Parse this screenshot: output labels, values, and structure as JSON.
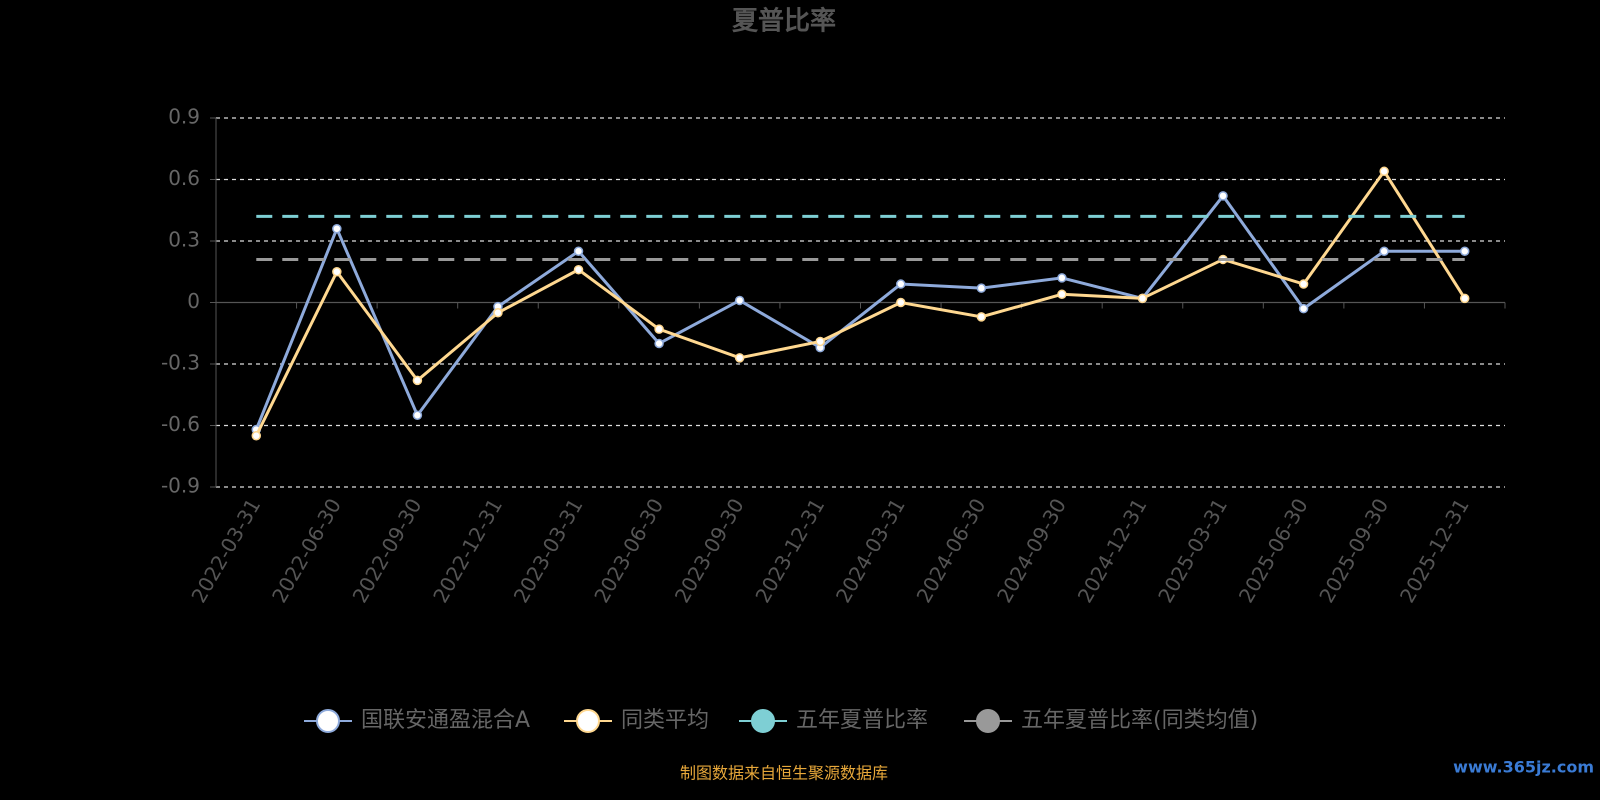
{
  "chart_data": {
    "type": "line",
    "title": "夏普比率",
    "categories": [
      "2022-03-31",
      "2022-06-30",
      "2022-09-30",
      "2022-12-31",
      "2023-03-31",
      "2023-06-30",
      "2023-09-30",
      "2023-12-31",
      "2024-03-31",
      "2024-06-30",
      "2024-09-30",
      "2024-12-31",
      "2025-03-31",
      "2025-06-30",
      "2025-09-30",
      "2025-12-31"
    ],
    "series": [
      {
        "name": "国联安通盈混合A",
        "color": "#8eaadb",
        "values": [
          -0.62,
          0.36,
          -0.55,
          -0.02,
          0.25,
          -0.2,
          0.01,
          -0.22,
          0.09,
          0.07,
          0.12,
          0.02,
          0.52,
          -0.03,
          0.25,
          0.25
        ]
      },
      {
        "name": "同类平均",
        "color": "#ffd890",
        "values": [
          -0.65,
          0.15,
          -0.38,
          -0.05,
          0.16,
          -0.13,
          -0.27,
          -0.19,
          0,
          -0.07,
          0.04,
          0.02,
          0.21,
          0.09,
          0.64,
          0.02
        ]
      },
      {
        "name": "五年夏普比率",
        "color": "#7ecfd4",
        "value": 0.42
      },
      {
        "name": "五年夏普比率(同类均值)",
        "color": "#999999",
        "value": 0.21
      }
    ],
    "ylim": [
      -0.9,
      0.9
    ],
    "yticks": [
      -0.9,
      -0.6,
      -0.3,
      0,
      0.3,
      0.6,
      0.9
    ],
    "grid": true,
    "footer": "制图数据来自恒生聚源数据库",
    "watermark": "www.365jz.com"
  }
}
